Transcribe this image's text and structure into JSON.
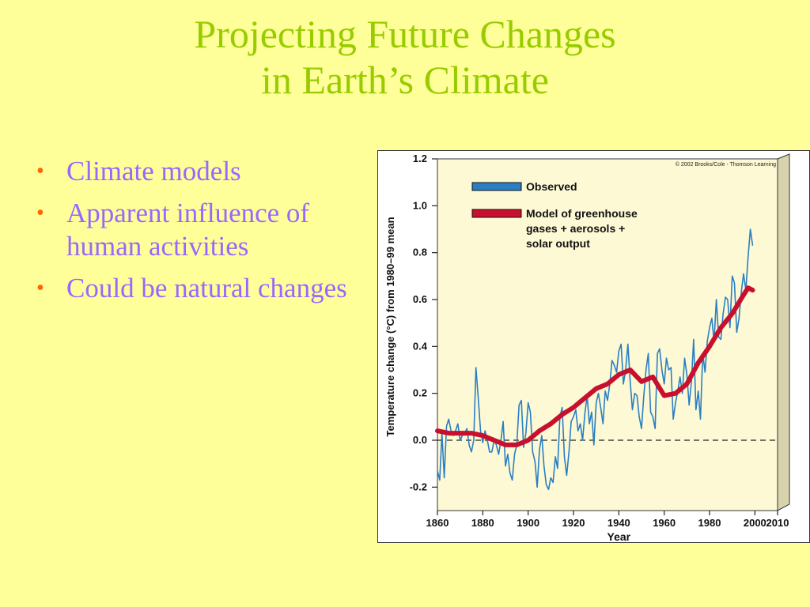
{
  "slide": {
    "title_line1": "Projecting Future Changes",
    "title_line2": "in Earth’s Climate",
    "bullet_marker": "•",
    "bullets": [
      "Climate models",
      "Apparent influence of human activities",
      "Could be natural changes"
    ]
  },
  "colors": {
    "background": "#ffff99",
    "title": "#99cc00",
    "bullet_text": "#9966ff",
    "bullet_marker": "#ff6600",
    "plot_background": "#fdf9d5",
    "plot_side_panel": "#d7d3ac",
    "observed": "#2a7fc4",
    "model": "#c8102e"
  },
  "chart_data": {
    "type": "line",
    "copyright": "© 2002 Brooks/Cole - Thomson Learning",
    "xlabel": "Year",
    "ylabel": "Temperature change (°C) from 1980–99 mean",
    "xlim": [
      1860,
      2010
    ],
    "ylim": [
      -0.3,
      1.2
    ],
    "xticks": [
      "1860",
      "1880",
      "1900",
      "1920",
      "1940",
      "1960",
      "1980",
      "2000",
      "2010"
    ],
    "yticks": [
      "1.2",
      "1.0",
      "0.8",
      "0.6",
      "0.4",
      "0.2",
      "0.0",
      "-0.2"
    ],
    "baseline": 0.0,
    "grid": false,
    "legend_position": "top-left",
    "series": [
      {
        "name": "Observed",
        "x": [
          1860,
          1861,
          1862,
          1863,
          1864,
          1865,
          1866,
          1867,
          1868,
          1869,
          1870,
          1871,
          1872,
          1873,
          1874,
          1875,
          1876,
          1877,
          1878,
          1879,
          1880,
          1881,
          1882,
          1883,
          1884,
          1885,
          1886,
          1887,
          1888,
          1889,
          1890,
          1891,
          1892,
          1893,
          1894,
          1895,
          1896,
          1897,
          1898,
          1899,
          1900,
          1901,
          1902,
          1903,
          1904,
          1905,
          1906,
          1907,
          1908,
          1909,
          1910,
          1911,
          1912,
          1913,
          1914,
          1915,
          1916,
          1917,
          1918,
          1919,
          1920,
          1921,
          1922,
          1923,
          1924,
          1925,
          1926,
          1927,
          1928,
          1929,
          1930,
          1931,
          1932,
          1933,
          1934,
          1935,
          1936,
          1937,
          1938,
          1939,
          1940,
          1941,
          1942,
          1943,
          1944,
          1945,
          1946,
          1947,
          1948,
          1949,
          1950,
          1951,
          1952,
          1953,
          1954,
          1955,
          1956,
          1957,
          1958,
          1959,
          1960,
          1961,
          1962,
          1963,
          1964,
          1965,
          1966,
          1967,
          1968,
          1969,
          1970,
          1971,
          1972,
          1973,
          1974,
          1975,
          1976,
          1977,
          1978,
          1979,
          1980,
          1981,
          1982,
          1983,
          1984,
          1985,
          1986,
          1987,
          1988,
          1989,
          1990,
          1991,
          1992,
          1993,
          1994,
          1995,
          1996,
          1997,
          1998,
          1999
        ],
        "y": [
          -0.13,
          -0.17,
          0.03,
          -0.16,
          0.06,
          0.09,
          0.04,
          0.02,
          0.04,
          0.07,
          0.0,
          0.02,
          0.03,
          0.05,
          -0.02,
          -0.05,
          0.0,
          0.31,
          0.18,
          0.04,
          -0.01,
          0.04,
          0.0,
          -0.05,
          -0.05,
          0.0,
          -0.02,
          -0.06,
          0.0,
          0.08,
          -0.11,
          -0.06,
          -0.14,
          -0.17,
          -0.06,
          -0.02,
          0.15,
          0.17,
          -0.03,
          0.03,
          0.16,
          0.12,
          -0.05,
          -0.09,
          -0.2,
          -0.04,
          0.02,
          -0.11,
          -0.19,
          -0.21,
          -0.16,
          -0.18,
          -0.07,
          -0.12,
          0.1,
          0.14,
          -0.07,
          -0.15,
          -0.05,
          0.08,
          0.1,
          0.13,
          0.04,
          0.07,
          0.0,
          0.11,
          0.19,
          0.07,
          0.12,
          -0.02,
          0.16,
          0.2,
          0.14,
          0.07,
          0.21,
          0.17,
          0.24,
          0.34,
          0.32,
          0.29,
          0.38,
          0.41,
          0.24,
          0.3,
          0.41,
          0.25,
          0.13,
          0.2,
          0.19,
          0.1,
          0.05,
          0.19,
          0.3,
          0.37,
          0.12,
          0.1,
          0.05,
          0.37,
          0.39,
          0.3,
          0.24,
          0.35,
          0.3,
          0.31,
          0.09,
          0.16,
          0.21,
          0.27,
          0.2,
          0.35,
          0.28,
          0.15,
          0.25,
          0.43,
          0.13,
          0.21,
          0.09,
          0.37,
          0.29,
          0.42,
          0.48,
          0.52,
          0.42,
          0.6,
          0.44,
          0.43,
          0.54,
          0.61,
          0.6,
          0.48,
          0.7,
          0.67,
          0.46,
          0.52,
          0.63,
          0.71,
          0.64,
          0.78,
          0.9,
          0.83
        ]
      },
      {
        "name": "Model of greenhouse gases + aerosols + solar output",
        "x": [
          1860,
          1865,
          1870,
          1875,
          1880,
          1885,
          1890,
          1895,
          1900,
          1905,
          1910,
          1915,
          1920,
          1925,
          1930,
          1935,
          1940,
          1945,
          1950,
          1955,
          1960,
          1965,
          1970,
          1975,
          1980,
          1985,
          1990,
          1995,
          1997,
          1999
        ],
        "y": [
          0.04,
          0.03,
          0.03,
          0.03,
          0.02,
          0.0,
          -0.02,
          -0.02,
          0.0,
          0.04,
          0.07,
          0.11,
          0.14,
          0.18,
          0.22,
          0.24,
          0.28,
          0.3,
          0.25,
          0.27,
          0.19,
          0.2,
          0.24,
          0.33,
          0.4,
          0.48,
          0.54,
          0.62,
          0.65,
          0.64
        ]
      }
    ]
  }
}
